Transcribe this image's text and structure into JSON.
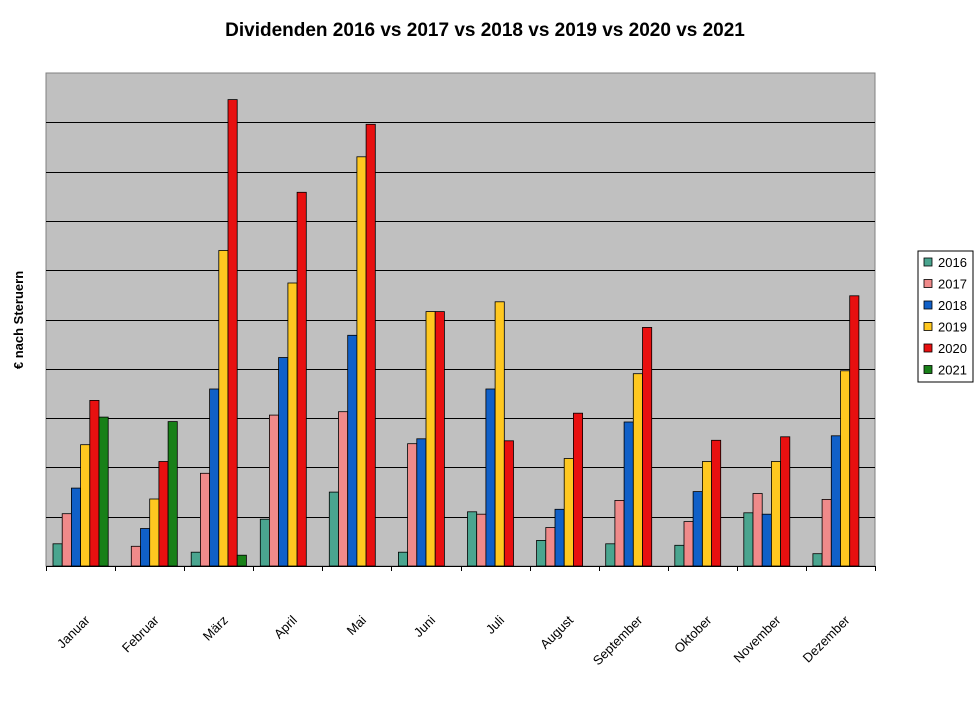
{
  "chart_data": {
    "type": "bar",
    "title": "Dividenden 2016 vs 2017 vs 2018 vs 2019 vs 2020 vs 2021",
    "xlabel": "",
    "ylabel": "€ nach Steruern",
    "ylim": [
      0,
      10
    ],
    "grid": true,
    "legend": "right",
    "categories": [
      "Januar",
      "Februar",
      "März",
      "April",
      "Mai",
      "Juni",
      "Juli",
      "August",
      "September",
      "Oktober",
      "November",
      "Dezember"
    ],
    "series": [
      {
        "name": "2016",
        "color": "#4aa58f",
        "values": [
          0.45,
          0,
          0.28,
          0.95,
          1.5,
          0.28,
          1.1,
          0.52,
          0.45,
          0.42,
          1.08,
          0.25
        ]
      },
      {
        "name": "2017",
        "color": "#f08a8a",
        "values": [
          1.06,
          0.4,
          1.88,
          3.06,
          3.13,
          2.48,
          1.05,
          0.78,
          1.33,
          0.9,
          1.47,
          1.35
        ]
      },
      {
        "name": "2018",
        "color": "#1060c8",
        "values": [
          1.58,
          0.76,
          3.59,
          4.23,
          4.68,
          2.58,
          3.59,
          1.15,
          2.92,
          1.51,
          1.05,
          2.64
        ]
      },
      {
        "name": "2019",
        "color": "#ffc820",
        "values": [
          2.46,
          1.36,
          6.4,
          5.74,
          8.3,
          5.16,
          5.36,
          2.18,
          3.9,
          2.12,
          2.12,
          3.96
        ]
      },
      {
        "name": "2020",
        "color": "#e81010",
        "values": [
          3.36,
          2.12,
          9.46,
          7.58,
          8.96,
          5.16,
          2.54,
          3.1,
          4.84,
          2.55,
          2.62,
          5.48
        ]
      },
      {
        "name": "2021",
        "color": "#188018",
        "values": [
          3.02,
          2.93,
          0.22,
          0,
          0,
          0,
          0,
          0,
          0,
          0,
          0,
          0
        ]
      }
    ]
  }
}
